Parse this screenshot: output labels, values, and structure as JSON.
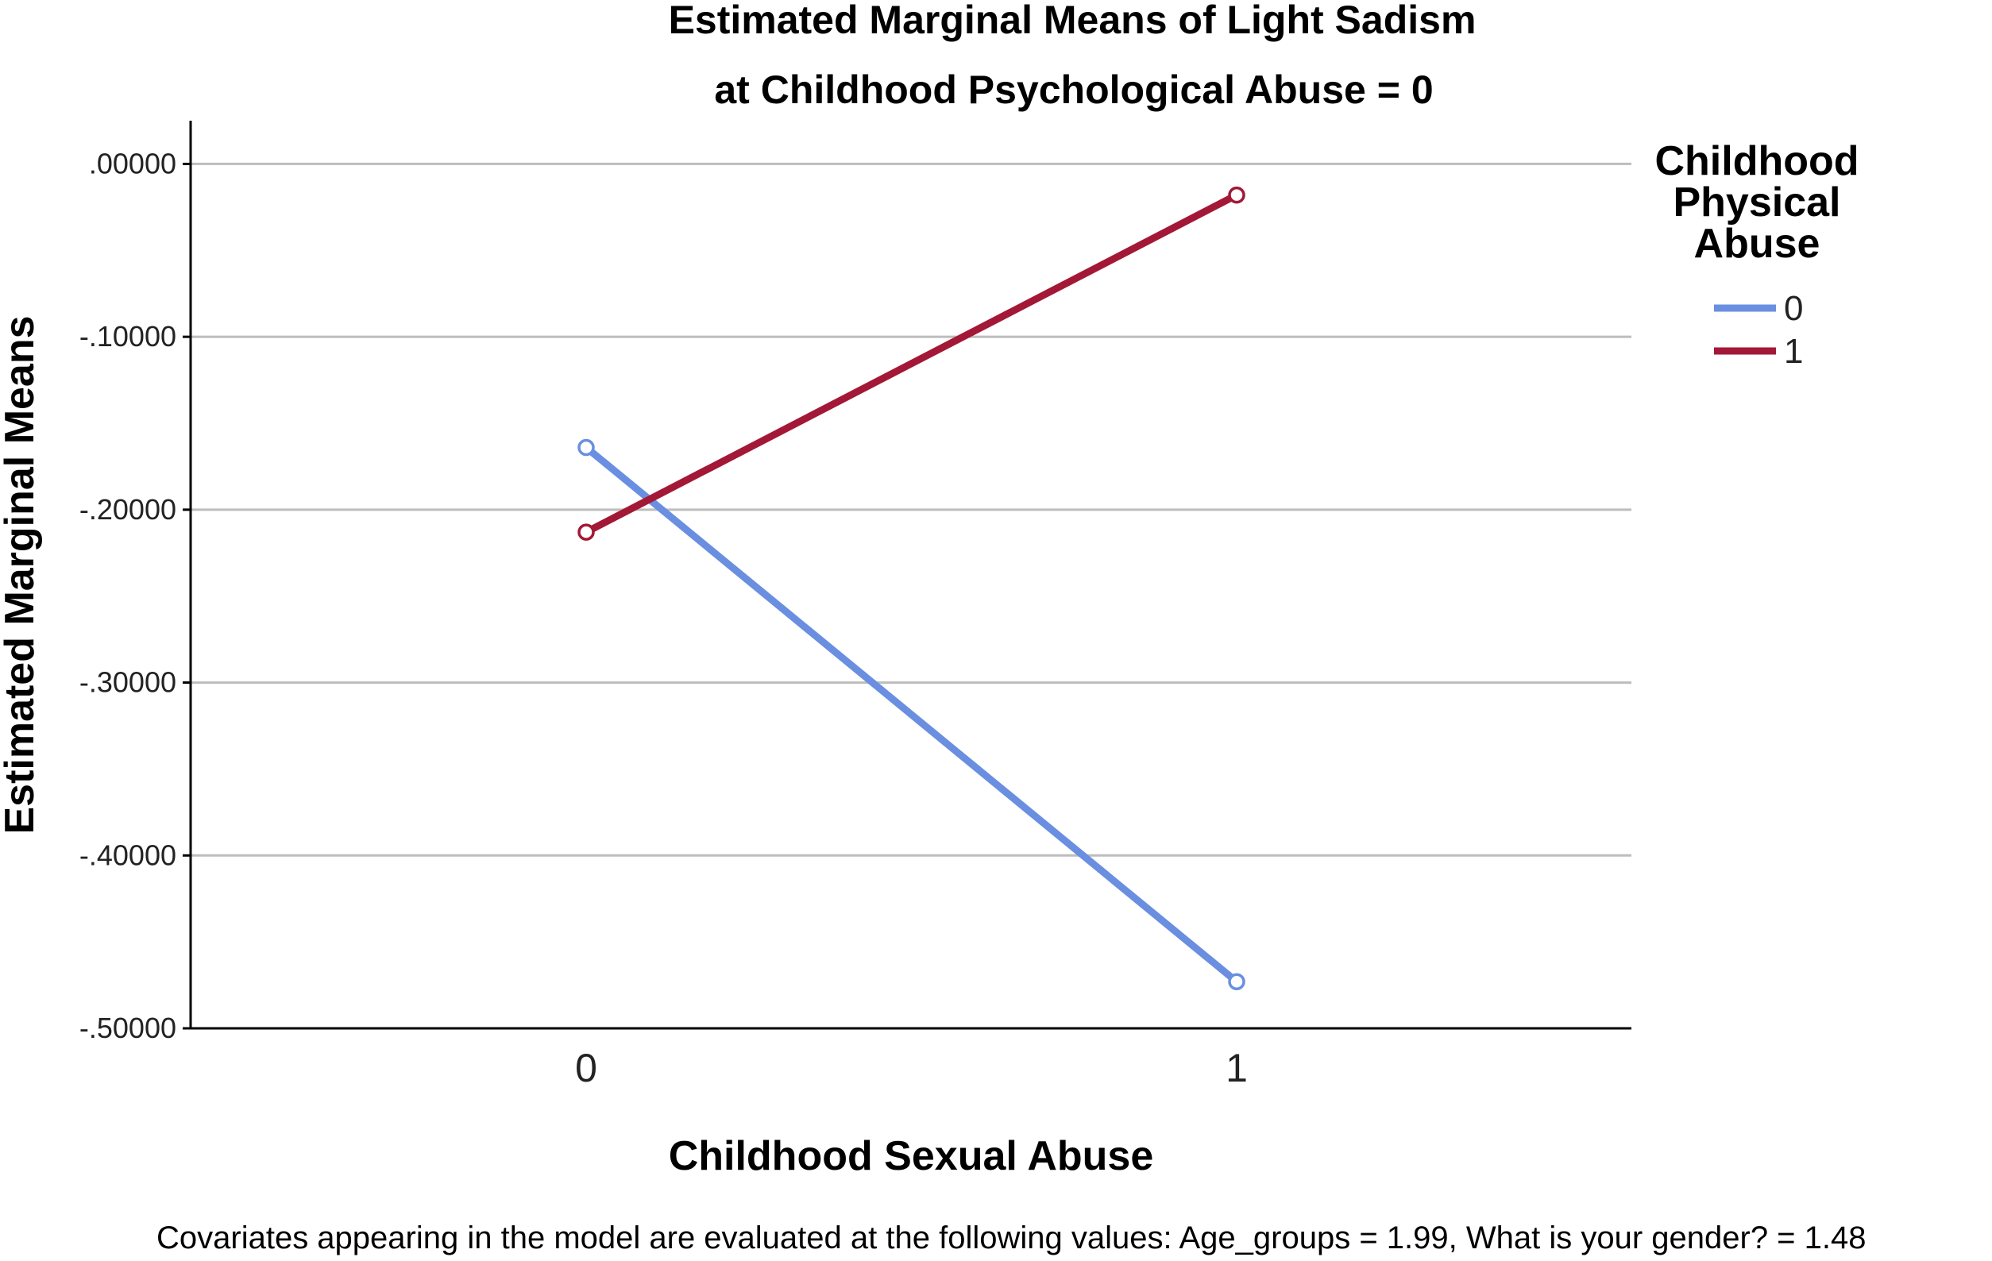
{
  "chart_data": {
    "type": "line",
    "title": "Estimated Marginal Means of Light Sadism",
    "subtitle": "at Childhood Psychological Abuse = 0",
    "xlabel": "Childhood Sexual Abuse",
    "ylabel": "Estimated Marginal Means",
    "categories": [
      "0",
      "1"
    ],
    "ylim": [
      -0.5,
      0.025
    ],
    "yticks": [
      0.0,
      -0.1,
      -0.2,
      -0.3,
      -0.4,
      -0.5
    ],
    "ytick_labels": [
      ".00000",
      "-.10000",
      "-.20000",
      "-.30000",
      "-.40000",
      "-.50000"
    ],
    "grid": true,
    "legend": {
      "title": [
        "Childhood",
        "Physical",
        "Abuse"
      ],
      "placement": "top-right"
    },
    "series": [
      {
        "name": "0",
        "values": [
          -0.164,
          -0.473
        ],
        "color": "#6a8fe0"
      },
      {
        "name": "1",
        "values": [
          -0.213,
          -0.018
        ],
        "color": "#a31836"
      }
    ],
    "footnote": "Covariates appearing in the model are evaluated at the following values: Age_groups = 1.99, What is your gender? = 1.48"
  }
}
